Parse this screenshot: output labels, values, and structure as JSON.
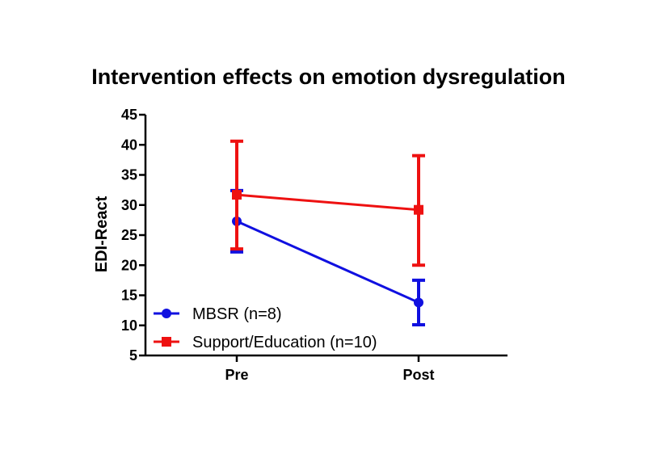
{
  "chart_data": {
    "type": "line",
    "title": "Intervention effects on emotion dysregulation",
    "xlabel": "",
    "ylabel": "EDI-React",
    "categories": [
      "Pre",
      "Post"
    ],
    "ylim": [
      5,
      45
    ],
    "yticks": [
      5,
      10,
      15,
      20,
      25,
      30,
      35,
      40,
      45
    ],
    "grid": false,
    "legend_position": "bottom-left",
    "series": [
      {
        "name": "MBSR (n=8)",
        "color": "#1010e0",
        "marker": "circle",
        "values": [
          27.3,
          13.8
        ],
        "error_low": [
          22.2,
          10.1
        ],
        "error_high": [
          32.4,
          17.5
        ]
      },
      {
        "name": "Support/Education (n=10)",
        "color": "#ee1111",
        "marker": "square",
        "values": [
          31.7,
          29.2
        ],
        "error_low": [
          22.7,
          20.0
        ],
        "error_high": [
          40.6,
          38.2
        ]
      }
    ]
  }
}
